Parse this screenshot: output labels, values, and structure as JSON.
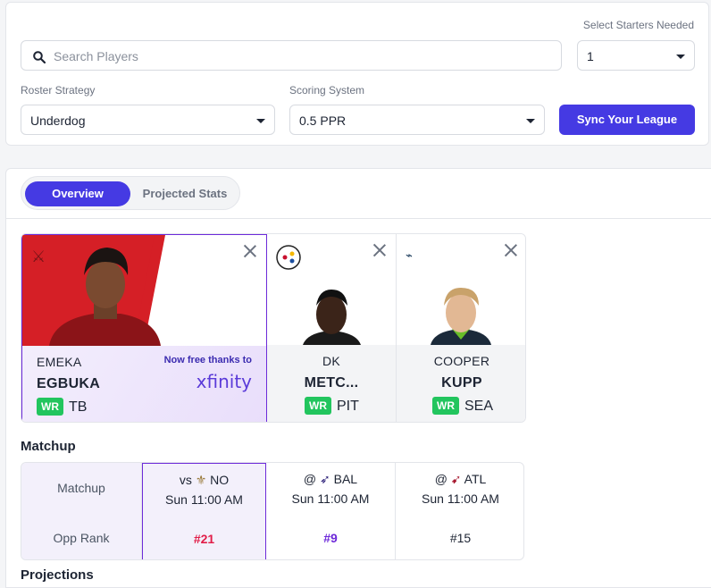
{
  "filters": {
    "search_placeholder": "Search Players",
    "starters_label": "Select Starters Needed",
    "starters_value": "1",
    "strategy_label": "Roster Strategy",
    "strategy_value": "Underdog",
    "scoring_label": "Scoring System",
    "scoring_value": "0.5 PPR",
    "sync_button": "Sync Your League"
  },
  "tabs": [
    "Overview",
    "Projected Stats"
  ],
  "players": [
    {
      "first": "EMEKA",
      "last": "EGBUKA",
      "pos": "WR",
      "team": "TB",
      "sponsor_text": "Now free thanks to",
      "sponsor_logo": "xfinity"
    },
    {
      "first": "DK",
      "last": "METC...",
      "pos": "WR",
      "team": "PIT"
    },
    {
      "first": "COOPER",
      "last": "KUPP",
      "pos": "WR",
      "team": "SEA"
    }
  ],
  "matchup": {
    "title": "Matchup",
    "row_labels": [
      "Matchup",
      "Opp Rank"
    ],
    "games": [
      {
        "prefix": "vs",
        "opp": "NO",
        "time": "Sun 11:00 AM",
        "rank": "#21",
        "rank_color": "#e11d48"
      },
      {
        "prefix": "@",
        "opp": "BAL",
        "time": "Sun 11:00 AM",
        "rank": "#9",
        "rank_color": "#6d28d9"
      },
      {
        "prefix": "@",
        "opp": "ATL",
        "time": "Sun 11:00 AM",
        "rank": "#15",
        "rank_color": "#1d2433"
      }
    ]
  },
  "next_section": "Projections",
  "colors": {
    "accent": "#453ae3",
    "position_badge": "#22c55e",
    "highlight_border": "#6d2bd9"
  }
}
